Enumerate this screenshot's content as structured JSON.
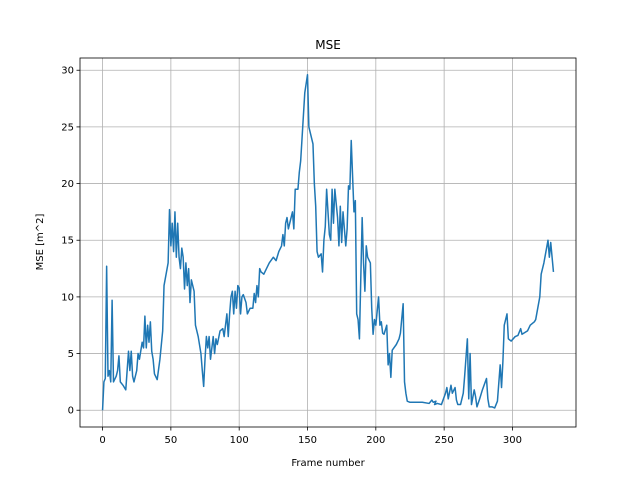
{
  "chart_data": {
    "type": "line",
    "title": "MSE",
    "xlabel": "Frame number",
    "ylabel": "MSE [m^2]",
    "x": [
      0,
      1,
      2,
      3,
      4,
      5,
      6,
      7,
      8,
      10,
      11,
      12,
      13,
      15,
      17,
      18,
      19,
      20,
      21,
      22,
      23,
      25,
      26,
      27,
      29,
      30,
      31,
      32,
      33,
      34,
      35,
      36,
      37,
      38,
      40,
      42,
      44,
      45,
      48,
      49,
      50,
      51,
      52,
      53,
      54,
      55,
      56,
      57,
      58,
      59,
      60,
      61,
      62,
      63,
      64,
      65,
      67,
      68,
      70,
      72,
      73,
      74,
      75,
      76,
      77,
      78,
      79,
      81,
      82,
      83,
      84,
      86,
      88,
      89,
      91,
      92,
      93,
      94,
      95,
      96,
      97,
      98,
      99,
      100,
      101,
      102,
      103,
      105,
      106,
      108,
      110,
      111,
      112,
      113,
      114,
      115,
      116,
      118,
      120,
      122,
      125,
      127,
      129,
      131,
      132,
      133,
      134,
      135,
      136,
      137,
      139,
      140,
      141,
      143,
      144,
      145,
      146,
      148,
      150,
      151,
      154,
      155,
      156,
      157,
      158,
      160,
      161,
      162,
      163,
      164,
      166,
      167,
      168,
      169,
      170,
      172,
      173,
      174,
      175,
      176,
      178,
      179,
      180,
      181,
      182,
      184,
      185,
      186,
      187,
      188,
      190,
      191,
      192,
      193,
      194,
      196,
      197,
      198,
      199,
      200,
      202,
      203,
      204,
      205,
      206,
      208,
      209,
      210,
      211,
      212,
      215,
      217,
      218,
      220,
      221,
      222,
      223,
      225,
      229,
      234,
      239,
      241,
      242,
      244,
      243,
      245,
      248,
      251,
      252,
      253,
      255,
      256,
      258,
      259,
      260,
      262,
      264,
      265,
      267,
      268,
      269,
      270,
      272,
      273,
      274,
      276,
      278,
      281,
      282,
      283,
      285,
      287,
      289,
      291,
      292,
      293,
      294,
      295,
      296,
      297,
      299,
      302,
      304,
      306,
      307,
      311,
      313,
      316,
      317,
      320,
      321,
      323,
      326,
      327,
      328,
      330
    ],
    "series": [
      {
        "name": "MSE",
        "color": "#1f77b4",
        "values": [
          0,
          2.5,
          2.8,
          12.7,
          3,
          3.5,
          2.5,
          9.7,
          2.5,
          3,
          3.5,
          4.8,
          2.5,
          2.2,
          1.8,
          3.5,
          5.2,
          3.5,
          5.2,
          3,
          2.5,
          3.5,
          5,
          4.5,
          6,
          5.5,
          8.3,
          5.5,
          7.5,
          6,
          7.8,
          5.2,
          4.5,
          3.2,
          2.7,
          4.5,
          7,
          11,
          13,
          17.7,
          14.5,
          16.5,
          14,
          17.5,
          13.5,
          16.5,
          13.5,
          12.5,
          14.3,
          13.5,
          10.7,
          13,
          11,
          12.5,
          9.5,
          11.5,
          10.5,
          7.5,
          6.5,
          5,
          3.5,
          2.1,
          4.5,
          6.5,
          5.5,
          6.5,
          4.5,
          6.5,
          5,
          6.3,
          5.8,
          7,
          7.2,
          6.5,
          8.5,
          6.5,
          8.5,
          10,
          10.5,
          8.5,
          10.5,
          9,
          11,
          10.8,
          8.5,
          10,
          10.2,
          9.5,
          8.5,
          9,
          9,
          10.3,
          9.5,
          11,
          10,
          12.5,
          12.2,
          12,
          12.5,
          13,
          13.5,
          13.2,
          14,
          14.5,
          15.5,
          14.5,
          16.5,
          17,
          16,
          16.5,
          17.5,
          16,
          19.5,
          19.5,
          21,
          22,
          24,
          28,
          29.6,
          25,
          23.5,
          20,
          18,
          14,
          13.5,
          13.8,
          12.2,
          15,
          16.2,
          19.5,
          15.5,
          15,
          19.5,
          16.5,
          19.5,
          17,
          14.5,
          18,
          14.8,
          17.5,
          14.5,
          16,
          19.8,
          19.5,
          23.8,
          17.5,
          18.5,
          8.5,
          8,
          6.3,
          17,
          13,
          10.5,
          14.5,
          13.5,
          13,
          9,
          6.7,
          8,
          7.5,
          10,
          7.5,
          7.8,
          6.8,
          6.7,
          7.5,
          4,
          5,
          2.9,
          5.3,
          5.8,
          6.3,
          6.8,
          9.4,
          2.5,
          1.5,
          0.8,
          0.7,
          0.7,
          0.7,
          0.6,
          0.9,
          0.7,
          0.8,
          0.5,
          0.6,
          0.5,
          1.5,
          2,
          1,
          2.2,
          1.5,
          2,
          0.9,
          0.5,
          0.5,
          1.5,
          3,
          6.3,
          1,
          5,
          0.5,
          1.8,
          1.2,
          0.3,
          1,
          1.8,
          2.8,
          1,
          0.3,
          0.3,
          0.2,
          0.8,
          4,
          2,
          4.3,
          7.5,
          8,
          8.5,
          6.3,
          6.1,
          6.5,
          6.6,
          7.2,
          6.7,
          7,
          7.5,
          7.8,
          8,
          10,
          12,
          13,
          15,
          13.5,
          14.8,
          12.2
        ]
      }
    ],
    "xlim": [
      -16.5,
      346.5
    ],
    "ylim": [
      -1.48,
      31.08
    ],
    "xticks": [
      0,
      50,
      100,
      150,
      200,
      250,
      300
    ],
    "yticks": [
      0,
      5,
      10,
      15,
      20,
      25,
      30
    ],
    "grid": true
  }
}
